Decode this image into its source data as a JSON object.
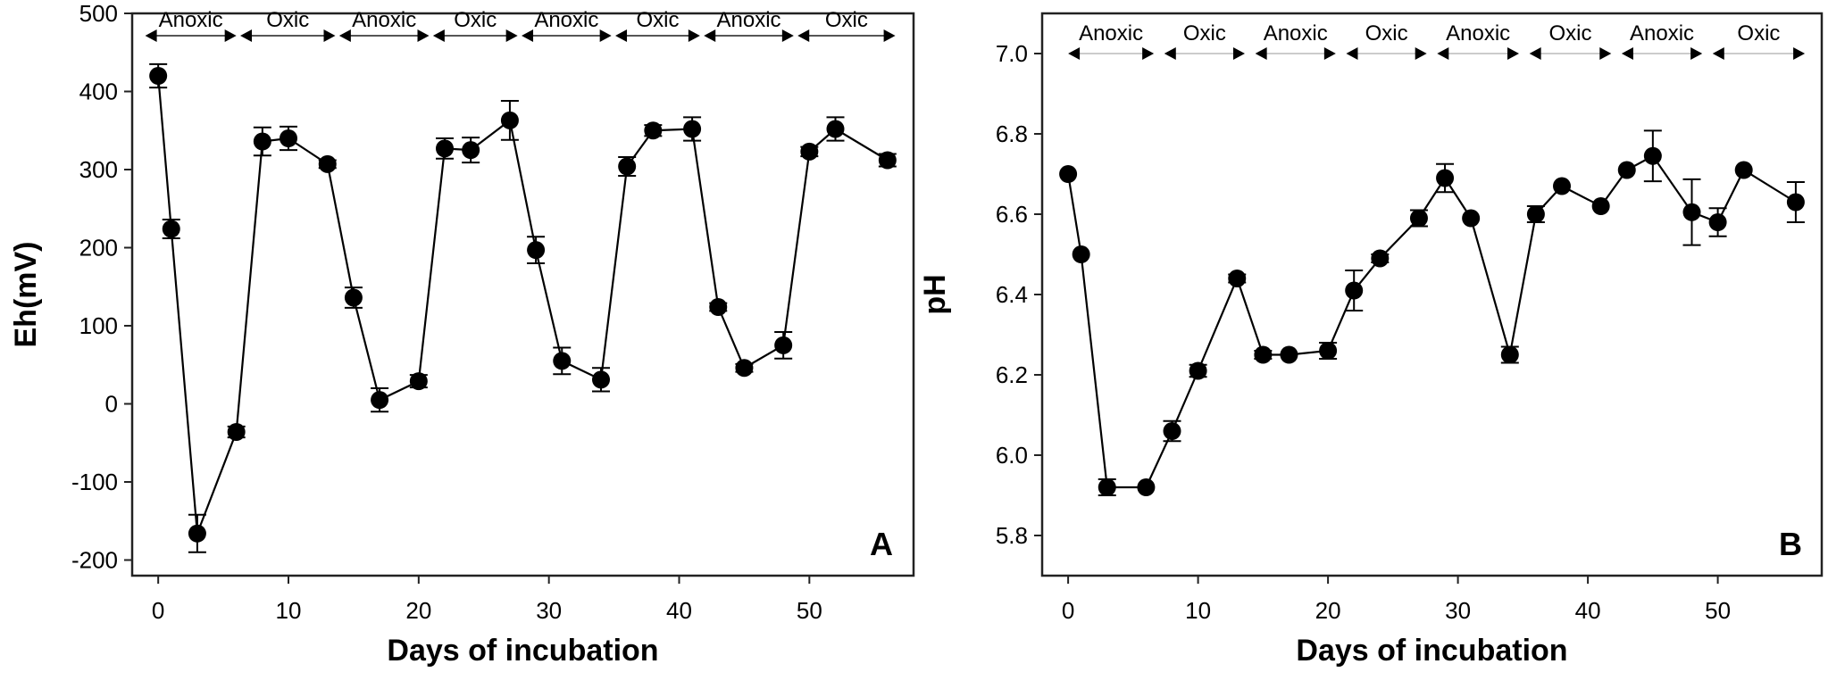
{
  "chart_data": [
    {
      "type": "line",
      "panel": "A",
      "title": "",
      "xlabel": "Days of incubation",
      "ylabel": "Eh(mV)",
      "xlim": [
        -2,
        58
      ],
      "ylim": [
        -220,
        500
      ],
      "xticks": [
        0,
        10,
        20,
        30,
        40,
        50
      ],
      "xtick_labels": [
        "0",
        "10",
        "20",
        "30",
        "40",
        "50"
      ],
      "yticks": [
        -200,
        -100,
        0,
        100,
        200,
        300,
        400,
        500
      ],
      "ytick_labels": [
        "-200",
        "-100",
        "0",
        "100",
        "200",
        "300",
        "400",
        "500"
      ],
      "grid": false,
      "periods": [
        {
          "label": "Anoxic",
          "start": -1,
          "end": 6
        },
        {
          "label": "Oxic",
          "start": 6.3,
          "end": 13.6
        },
        {
          "label": "Anoxic",
          "start": 13.9,
          "end": 20.8
        },
        {
          "label": "Oxic",
          "start": 21.1,
          "end": 27.6
        },
        {
          "label": "Anoxic",
          "start": 27.9,
          "end": 34.8
        },
        {
          "label": "Oxic",
          "start": 35.1,
          "end": 41.6
        },
        {
          "label": "Anoxic",
          "start": 41.9,
          "end": 48.8
        },
        {
          "label": "Oxic",
          "start": 49.1,
          "end": 56.6
        }
      ],
      "series": [
        {
          "name": "Eh",
          "x": [
            0,
            1,
            3,
            6,
            8,
            10,
            13,
            15,
            17,
            20,
            22,
            24,
            27,
            29,
            31,
            34,
            36,
            38,
            41,
            43,
            45,
            48,
            50,
            52,
            56
          ],
          "y": [
            420,
            224,
            -166,
            -36,
            336,
            340,
            307,
            136,
            5,
            29,
            327,
            325,
            363,
            197,
            55,
            31,
            304,
            350,
            352,
            124,
            46,
            75,
            323,
            352,
            312
          ],
          "err": [
            15,
            12,
            24,
            7,
            18,
            15,
            5,
            13,
            15,
            8,
            13,
            16,
            25,
            17,
            17,
            15,
            12,
            7,
            15,
            5,
            5,
            17,
            6,
            15,
            8
          ]
        }
      ]
    },
    {
      "type": "line",
      "panel": "B",
      "title": "",
      "xlabel": "Days of incubation",
      "ylabel": "pH",
      "xlim": [
        -2,
        58
      ],
      "ylim": [
        5.7,
        7.1
      ],
      "xticks": [
        0,
        10,
        20,
        30,
        40,
        50
      ],
      "xtick_labels": [
        "0",
        "10",
        "20",
        "30",
        "40",
        "50"
      ],
      "yticks": [
        5.8,
        6.0,
        6.2,
        6.4,
        6.6,
        6.8,
        7.0
      ],
      "ytick_labels": [
        "5.8",
        "6.0",
        "6.2",
        "6.4",
        "6.6",
        "6.8",
        "7.0"
      ],
      "grid": false,
      "periods": [
        {
          "label": "Anoxic",
          "start": 0,
          "end": 6.6
        },
        {
          "label": "Oxic",
          "start": 7.4,
          "end": 13.6
        },
        {
          "label": "Anoxic",
          "start": 14.4,
          "end": 20.6
        },
        {
          "label": "Oxic",
          "start": 21.4,
          "end": 27.6
        },
        {
          "label": "Anoxic",
          "start": 28.4,
          "end": 34.7
        },
        {
          "label": "Oxic",
          "start": 35.5,
          "end": 41.8
        },
        {
          "label": "Anoxic",
          "start": 42.6,
          "end": 48.8
        },
        {
          "label": "Oxic",
          "start": 49.6,
          "end": 56.7
        }
      ],
      "series": [
        {
          "name": "pH",
          "x": [
            0,
            1,
            3,
            6,
            8,
            10,
            13,
            15,
            17,
            20,
            22,
            24,
            27,
            29,
            31,
            34,
            36,
            38,
            41,
            43,
            45,
            48,
            50,
            52,
            56
          ],
          "y": [
            6.7,
            6.5,
            5.92,
            5.92,
            6.06,
            6.21,
            6.44,
            6.25,
            6.25,
            6.26,
            6.41,
            6.49,
            6.59,
            6.69,
            6.59,
            6.25,
            6.6,
            6.67,
            6.62,
            6.71,
            6.745,
            6.605,
            6.58,
            6.71,
            6.63
          ],
          "err": [
            0,
            0,
            0.02,
            0,
            0.025,
            0.015,
            0.01,
            0.01,
            0,
            0.02,
            0.05,
            0.01,
            0.02,
            0.035,
            0,
            0.02,
            0.02,
            0,
            0,
            0,
            0.063,
            0.082,
            0.035,
            0,
            0.05
          ]
        }
      ]
    }
  ]
}
